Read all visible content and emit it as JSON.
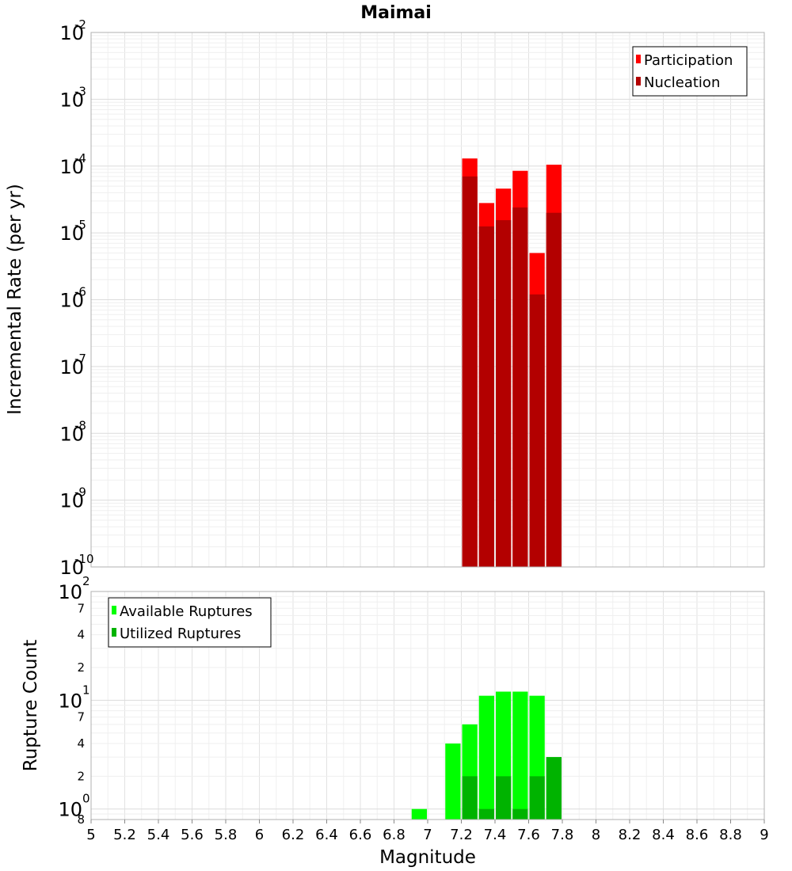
{
  "chart_data": [
    {
      "type": "bar",
      "title": "Maimai",
      "xlabel": "",
      "ylabel": "Incremental Rate (per yr)",
      "yscale": "log",
      "xlim": [
        5,
        9
      ],
      "ylim": [
        1e-10,
        0.01
      ],
      "bin_width": 0.1,
      "y_tick_labels": [
        {
          "base": "10",
          "exp": "-10"
        },
        {
          "base": "10",
          "exp": "-9"
        },
        {
          "base": "10",
          "exp": "-8"
        },
        {
          "base": "10",
          "exp": "-7"
        },
        {
          "base": "10",
          "exp": "-6"
        },
        {
          "base": "10",
          "exp": "-5"
        },
        {
          "base": "10",
          "exp": "-4"
        },
        {
          "base": "10",
          "exp": "-3"
        },
        {
          "base": "10",
          "exp": "-2"
        }
      ],
      "legend": {
        "position": "top-right"
      },
      "x": [
        7.25,
        7.35,
        7.45,
        7.55,
        7.65,
        7.75
      ],
      "series": [
        {
          "name": "Participation",
          "color": "#ff0000",
          "values": [
            0.00013,
            2.8e-05,
            4.6e-05,
            8.5e-05,
            5e-06,
            0.000105
          ]
        },
        {
          "name": "Nucleation",
          "color": "#b30000",
          "values": [
            7e-05,
            1.25e-05,
            1.55e-05,
            2.4e-05,
            1.2e-06,
            2e-05
          ]
        }
      ],
      "grid": true
    },
    {
      "type": "bar",
      "title": "",
      "xlabel": "Magnitude",
      "ylabel": "Rupture Count",
      "yscale": "log",
      "xlim": [
        5,
        9
      ],
      "ylim": [
        0.8,
        100
      ],
      "bin_width": 0.1,
      "x_ticks": [
        "5",
        "5.2",
        "5.4",
        "5.6",
        "5.8",
        "6",
        "6.2",
        "6.4",
        "6.6",
        "6.8",
        "7",
        "7.2",
        "7.4",
        "7.6",
        "7.8",
        "8",
        "8.2",
        "8.4",
        "8.6",
        "8.8",
        "9"
      ],
      "y_major_ticks": [
        {
          "value": 1,
          "base": "10",
          "exp": "0"
        },
        {
          "value": 10,
          "base": "10",
          "exp": "1"
        },
        {
          "value": 100,
          "base": "10",
          "exp": "2"
        }
      ],
      "y_minor_ticks": [
        {
          "value": 0.8,
          "label": "8"
        },
        {
          "value": 2,
          "label": "2"
        },
        {
          "value": 4,
          "label": "4"
        },
        {
          "value": 7,
          "label": "7"
        },
        {
          "value": 20,
          "label": "2"
        },
        {
          "value": 40,
          "label": "4"
        },
        {
          "value": 70,
          "label": "7"
        }
      ],
      "legend": {
        "position": "top-left"
      },
      "x": [
        6.95,
        7.15,
        7.25,
        7.35,
        7.45,
        7.55,
        7.65,
        7.75
      ],
      "series": [
        {
          "name": "Available Ruptures",
          "color": "#00ff00",
          "values": [
            1,
            4,
            6,
            11,
            12,
            12,
            11,
            3
          ]
        },
        {
          "name": "Utilized Ruptures",
          "color": "#00b300",
          "values": [
            0,
            0,
            2,
            1,
            2,
            1,
            2,
            3
          ]
        }
      ],
      "grid": true
    }
  ]
}
